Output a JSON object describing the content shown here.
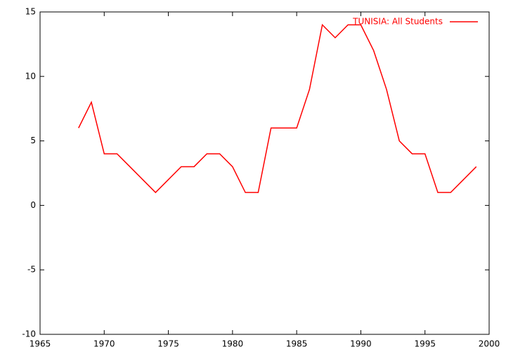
{
  "chart_data": {
    "type": "line",
    "x": [
      1968,
      1969,
      1970,
      1971,
      1972,
      1973,
      1974,
      1975,
      1976,
      1977,
      1978,
      1979,
      1980,
      1981,
      1982,
      1983,
      1984,
      1985,
      1986,
      1987,
      1988,
      1989,
      1990,
      1991,
      1992,
      1993,
      1994,
      1995,
      1996,
      1997,
      1998,
      1999
    ],
    "series": [
      {
        "name": "TUNISIA: All Students",
        "color": "#ff0000",
        "values": [
          6,
          8,
          4,
          4,
          3,
          2,
          1,
          2,
          3,
          3,
          4,
          4,
          3,
          1,
          1,
          6,
          6,
          6,
          9,
          14,
          13,
          14,
          14,
          12,
          9,
          5,
          4,
          4,
          1,
          1,
          2,
          3
        ]
      }
    ],
    "xlim": [
      1965,
      2000
    ],
    "xticks": [
      1965,
      1970,
      1975,
      1980,
      1985,
      1990,
      1995,
      2000
    ],
    "ylim": [
      -10,
      15
    ],
    "yticks": [
      -10,
      -5,
      0,
      5,
      10,
      15
    ],
    "grid": false,
    "legend": "top-right"
  }
}
